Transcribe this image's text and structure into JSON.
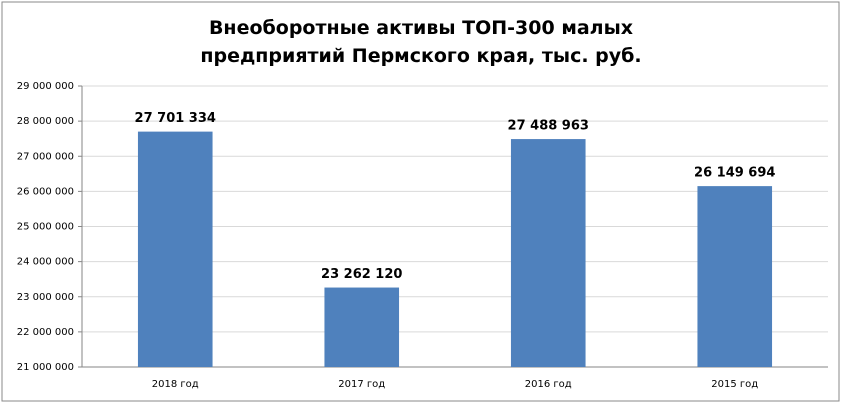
{
  "chart_data": {
    "type": "bar",
    "title": "Внеоборотные активы ТОП-300 малых предприятий Пермского края, тыс. руб.",
    "categories": [
      "2018 год",
      "2017 год",
      "2016 год",
      "2015 год"
    ],
    "values": [
      27701334,
      23262120,
      27488963,
      26149694
    ],
    "value_labels": [
      "27 701 334",
      "23 262 120",
      "27 488 963",
      "26 149 694"
    ],
    "color": "#4f81bd",
    "ylim": [
      21000000,
      29000000
    ],
    "yticks": [
      {
        "value": 21000000,
        "label": "21 000 000"
      },
      {
        "value": 22000000,
        "label": "22 000 000"
      },
      {
        "value": 23000000,
        "label": "23 000 000"
      },
      {
        "value": 24000000,
        "label": "24 000 000"
      },
      {
        "value": 25000000,
        "label": "25 000 000"
      },
      {
        "value": 26000000,
        "label": "26 000 000"
      },
      {
        "value": 27000000,
        "label": "27 000 000"
      },
      {
        "value": 28000000,
        "label": "28 000 000"
      },
      {
        "value": 29000000,
        "label": "29 000 000"
      }
    ],
    "grid": true
  }
}
